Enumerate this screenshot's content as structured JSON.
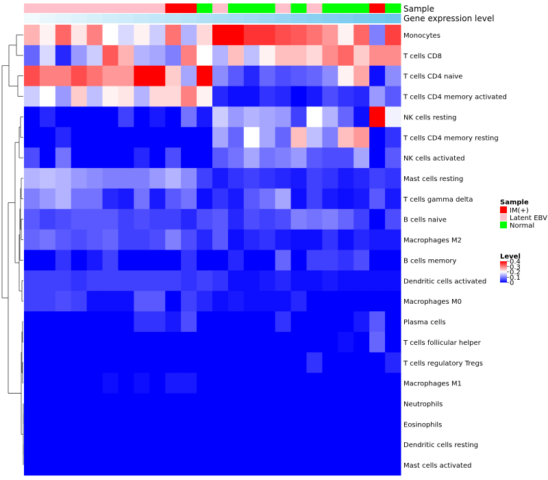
{
  "chart_data": {
    "type": "heatmap",
    "annotation_labels": [
      "Sample",
      "Gene expression level"
    ],
    "column_sample": [
      "Latent EBV",
      "Latent EBV",
      "Latent EBV",
      "Latent EBV",
      "Latent EBV",
      "Latent EBV",
      "Latent EBV",
      "Latent EBV",
      "Latent EBV",
      "IM(+)",
      "IM(+)",
      "Normal",
      "Latent EBV",
      "Normal",
      "Normal",
      "Normal",
      "Latent EBV",
      "Normal",
      "Latent EBV",
      "Normal",
      "Normal",
      "Normal",
      "IM(+)",
      "Normal"
    ],
    "column_expression": [
      0.05,
      0.08,
      0.1,
      0.12,
      0.14,
      0.16,
      0.18,
      0.2,
      0.22,
      0.24,
      0.26,
      0.28,
      0.3,
      0.32,
      0.34,
      0.36,
      0.38,
      0.4,
      0.42,
      0.44,
      0.46,
      0.48,
      0.5,
      0.52
    ],
    "rows": [
      "Monocytes",
      "T cells CD8",
      "T cells CD4 naive",
      "T cells CD4 memory activated",
      "NK cells resting",
      "T cells CD4 memory resting",
      "NK cells activated",
      "Mast cells resting",
      "T cells gamma delta",
      "B cells naive",
      "Macrophages M2",
      "B cells memory",
      "Dendritic cells activated",
      "Macrophages M0",
      "Plasma cells",
      "T cells follicular helper",
      "T cells regulatory  Tregs",
      "Macrophages M1",
      "Neutrophils",
      "Eosinophils",
      "Dendritic cells resting",
      "Mast cells activated"
    ],
    "values": [
      [
        0.26,
        0.21,
        0.32,
        0.22,
        0.3,
        0.2,
        0.17,
        0.21,
        0.16,
        0.31,
        0.14,
        0.23,
        0.4,
        0.4,
        0.36,
        0.36,
        0.34,
        0.33,
        0.31,
        0.28,
        0.21,
        0.32,
        0.1,
        0.35
      ],
      [
        0.08,
        0.17,
        0.03,
        0.12,
        0.16,
        0.33,
        0.26,
        0.14,
        0.13,
        0.1,
        0.3,
        0.2,
        0.14,
        0.25,
        0.15,
        0.21,
        0.25,
        0.25,
        0.23,
        0.29,
        0.32,
        0.24,
        0.29,
        0.29
      ],
      [
        0.34,
        0.3,
        0.3,
        0.34,
        0.31,
        0.28,
        0.28,
        0.4,
        0.4,
        0.24,
        0.13,
        0.4,
        0.11,
        0.07,
        0.03,
        0.08,
        0.06,
        0.07,
        0.08,
        0.11,
        0.21,
        0.27,
        0.01,
        0.11
      ],
      [
        0.16,
        0.2,
        0.12,
        0.24,
        0.15,
        0.21,
        0.22,
        0.14,
        0.23,
        0.23,
        0.3,
        0.21,
        0.03,
        0.01,
        0.01,
        0.04,
        0.03,
        0.0,
        0.02,
        0.06,
        0.04,
        0.03,
        0.12,
        0.07
      ],
      [
        0.0,
        0.03,
        0.0,
        0.0,
        0.0,
        0.0,
        0.05,
        0.0,
        0.02,
        0.0,
        0.09,
        0.02,
        0.16,
        0.12,
        0.14,
        0.13,
        0.12,
        0.05,
        0.2,
        0.14,
        0.08,
        0.01,
        0.4,
        0.19
      ],
      [
        0.0,
        0.0,
        0.03,
        0.0,
        0.0,
        0.0,
        0.0,
        0.0,
        0.0,
        0.0,
        0.0,
        0.0,
        0.13,
        0.08,
        0.2,
        0.13,
        0.08,
        0.25,
        0.15,
        0.1,
        0.25,
        0.28,
        0.0,
        0.04
      ],
      [
        0.06,
        0.0,
        0.09,
        0.0,
        0.0,
        0.0,
        0.0,
        0.03,
        0.0,
        0.06,
        0.0,
        0.0,
        0.07,
        0.09,
        0.13,
        0.09,
        0.1,
        0.12,
        0.07,
        0.06,
        0.06,
        0.13,
        0.0,
        0.07
      ],
      [
        0.14,
        0.15,
        0.14,
        0.12,
        0.11,
        0.1,
        0.1,
        0.1,
        0.12,
        0.14,
        0.11,
        0.05,
        0.02,
        0.04,
        0.05,
        0.04,
        0.03,
        0.02,
        0.05,
        0.04,
        0.02,
        0.03,
        0.05,
        0.04
      ],
      [
        0.1,
        0.12,
        0.14,
        0.09,
        0.09,
        0.03,
        0.02,
        0.09,
        0.02,
        0.07,
        0.09,
        0.01,
        0.04,
        0.02,
        0.07,
        0.09,
        0.13,
        0.01,
        0.05,
        0.02,
        0.01,
        0.02,
        0.07,
        0.02
      ],
      [
        0.07,
        0.05,
        0.06,
        0.07,
        0.07,
        0.07,
        0.05,
        0.06,
        0.05,
        0.05,
        0.03,
        0.06,
        0.07,
        0.03,
        0.06,
        0.05,
        0.06,
        0.1,
        0.09,
        0.1,
        0.08,
        0.05,
        0.0,
        0.06
      ],
      [
        0.08,
        0.09,
        0.07,
        0.06,
        0.07,
        0.08,
        0.05,
        0.05,
        0.06,
        0.1,
        0.06,
        0.03,
        0.07,
        0.01,
        0.03,
        0.04,
        0.02,
        0.01,
        0.01,
        0.04,
        0.01,
        0.03,
        0.02,
        0.02
      ],
      [
        0.0,
        0.0,
        0.04,
        0.0,
        0.02,
        0.05,
        0.0,
        0.0,
        0.0,
        0.0,
        0.04,
        0.0,
        0.0,
        0.03,
        0.0,
        0.0,
        0.08,
        0.0,
        0.05,
        0.05,
        0.04,
        0.06,
        0.0,
        0.0
      ],
      [
        0.05,
        0.05,
        0.05,
        0.04,
        0.05,
        0.05,
        0.05,
        0.05,
        0.05,
        0.05,
        0.04,
        0.05,
        0.04,
        0.01,
        0.01,
        0.02,
        0.03,
        0.01,
        0.01,
        0.02,
        0.01,
        0.01,
        0.01,
        0.01
      ],
      [
        0.05,
        0.05,
        0.06,
        0.05,
        0.01,
        0.01,
        0.01,
        0.07,
        0.07,
        0.0,
        0.05,
        0.03,
        0.01,
        0.02,
        0.01,
        0.01,
        0.01,
        0.03,
        0.0,
        0.0,
        0.0,
        0.0,
        0.0,
        0.0
      ],
      [
        0.0,
        0.0,
        0.0,
        0.0,
        0.0,
        0.0,
        0.0,
        0.04,
        0.04,
        0.02,
        0.06,
        0.0,
        0.0,
        0.0,
        0.0,
        0.0,
        0.04,
        0.0,
        0.0,
        0.0,
        0.0,
        0.02,
        0.07,
        0.0
      ],
      [
        0.0,
        0.0,
        0.0,
        0.0,
        0.0,
        0.0,
        0.0,
        0.0,
        0.0,
        0.0,
        0.0,
        0.0,
        0.0,
        0.0,
        0.0,
        0.0,
        0.0,
        0.0,
        0.0,
        0.0,
        0.01,
        0.0,
        0.08,
        0.0
      ],
      [
        0.0,
        0.0,
        0.0,
        0.0,
        0.0,
        0.0,
        0.0,
        0.0,
        0.0,
        0.0,
        0.0,
        0.0,
        0.0,
        0.0,
        0.0,
        0.0,
        0.0,
        0.0,
        0.04,
        0.0,
        0.0,
        0.0,
        0.0,
        0.03
      ],
      [
        0.0,
        0.0,
        0.0,
        0.0,
        0.0,
        0.01,
        0.0,
        0.01,
        0.0,
        0.02,
        0.02,
        0.0,
        0.0,
        0.0,
        0.0,
        0.0,
        0.0,
        0.0,
        0.0,
        0.0,
        0.0,
        0.0,
        0.0,
        0.0
      ],
      [
        0.0,
        0.0,
        0.0,
        0.0,
        0.0,
        0.0,
        0.0,
        0.0,
        0.0,
        0.0,
        0.0,
        0.0,
        0.0,
        0.0,
        0.0,
        0.0,
        0.0,
        0.0,
        0.0,
        0.0,
        0.0,
        0.0,
        0.0,
        0.0
      ],
      [
        0.0,
        0.0,
        0.0,
        0.0,
        0.0,
        0.0,
        0.0,
        0.0,
        0.0,
        0.0,
        0.0,
        0.0,
        0.0,
        0.0,
        0.0,
        0.0,
        0.0,
        0.0,
        0.0,
        0.0,
        0.0,
        0.0,
        0.0,
        0.0
      ],
      [
        0.0,
        0.0,
        0.0,
        0.0,
        0.0,
        0.0,
        0.0,
        0.0,
        0.0,
        0.0,
        0.0,
        0.0,
        0.0,
        0.0,
        0.0,
        0.0,
        0.0,
        0.0,
        0.0,
        0.0,
        0.0,
        0.0,
        0.0,
        0.0
      ],
      [
        0.0,
        0.0,
        0.0,
        0.0,
        0.0,
        0.0,
        0.0,
        0.0,
        0.0,
        0.0,
        0.0,
        0.0,
        0.0,
        0.0,
        0.0,
        0.0,
        0.0,
        0.0,
        0.0,
        0.0,
        0.0,
        0.0,
        0.0,
        0.0
      ]
    ],
    "color_scale": {
      "min": 0,
      "max": 0.4,
      "colors": [
        "#0000ff",
        "#ffffff",
        "#ff0000"
      ]
    },
    "expression_scale_colors": [
      "#ffffff",
      "#6ec6ee"
    ],
    "legend": {
      "sample_title": "Sample",
      "sample_entries": [
        {
          "label": "IM(+)",
          "color": "#ff0000"
        },
        {
          "label": "Latent EBV",
          "color": "#ffc0cb"
        },
        {
          "label": "Normal",
          "color": "#00ff00"
        }
      ],
      "level_title": "Level",
      "level_ticks": [
        "0.4",
        "0.3",
        "0.2",
        "0.1",
        "0"
      ],
      "level_tick_values": [
        0.4,
        0.3,
        0.2,
        0.1,
        0
      ]
    },
    "row_dendrogram": "left",
    "legend_position": "right"
  }
}
